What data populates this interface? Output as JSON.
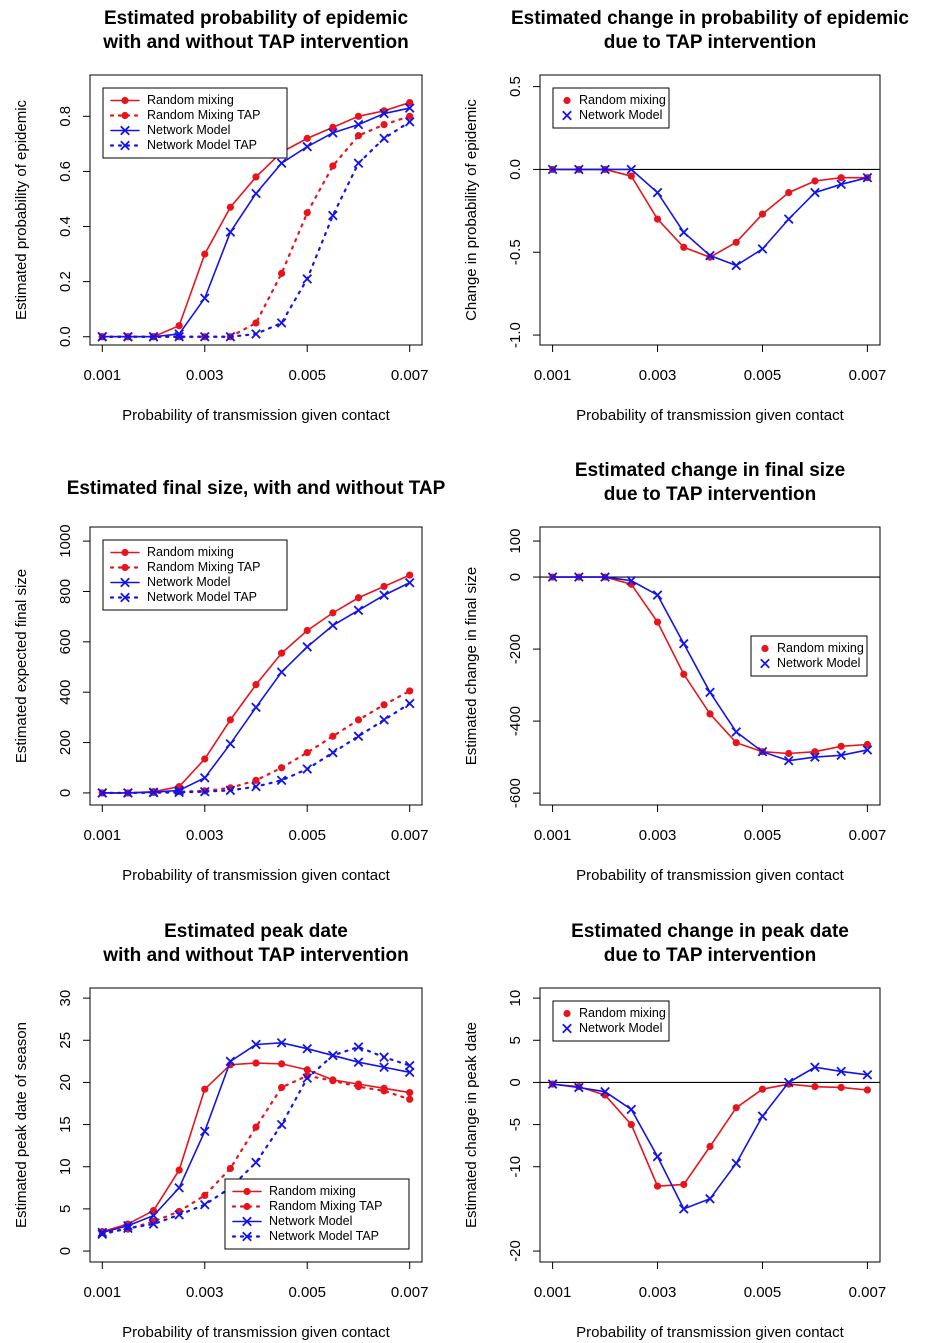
{
  "chart_data": [
    {
      "type": "line",
      "title": [
        "Estimated probability of epidemic",
        "with and without TAP intervention"
      ],
      "x_label": "Probability of transmission given contact",
      "y_label": "Estimated probability of epidemic",
      "x": [
        0.001,
        0.0015,
        0.002,
        0.0025,
        0.003,
        0.0035,
        0.004,
        0.0045,
        0.005,
        0.0055,
        0.006,
        0.0065,
        0.007
      ],
      "xlim": [
        0.00076,
        0.00724
      ],
      "xticks": [
        0.001,
        0.003,
        0.005,
        0.007
      ],
      "ylim": [
        -0.03,
        0.95
      ],
      "yticks": [
        {
          "value": 0,
          "label": "0.0"
        },
        0.2,
        0.4,
        0.6,
        0.8
      ],
      "legend": "topleft",
      "series": [
        {
          "name": "Random mixing",
          "color": "#e8141c",
          "line": "solid",
          "marker": "dot",
          "values": [
            0,
            0,
            0,
            0.04,
            0.3,
            0.47,
            0.58,
            0.67,
            0.72,
            0.76,
            0.8,
            0.82,
            0.85
          ]
        },
        {
          "name": "Random Mixing TAP",
          "color": "#e8141c",
          "line": "dotted",
          "marker": "dot",
          "values": [
            0,
            0,
            0,
            0,
            0,
            0,
            0.05,
            0.23,
            0.45,
            0.62,
            0.73,
            0.77,
            0.8
          ]
        },
        {
          "name": "Network Model",
          "color": "#1414e8",
          "line": "solid",
          "marker": "x",
          "values": [
            0,
            0,
            0,
            0.01,
            0.14,
            0.38,
            0.52,
            0.63,
            0.69,
            0.74,
            0.77,
            0.81,
            0.83
          ]
        },
        {
          "name": "Network Model TAP",
          "color": "#1414e8",
          "line": "dotted",
          "marker": "x",
          "values": [
            0,
            0,
            0,
            0,
            0,
            0,
            0.01,
            0.05,
            0.21,
            0.44,
            0.63,
            0.72,
            0.78
          ]
        }
      ]
    },
    {
      "type": "line",
      "title": [
        "Estimated change in probability of epidemic",
        "due to TAP intervention"
      ],
      "x_label": "Probability of transmission given contact",
      "y_label": "Change in probability of epidemic",
      "x": [
        0.001,
        0.0015,
        0.002,
        0.0025,
        0.003,
        0.0035,
        0.004,
        0.0045,
        0.005,
        0.0055,
        0.006,
        0.0065,
        0.007
      ],
      "xlim": [
        0.00076,
        0.00724
      ],
      "xticks": [
        0.001,
        0.003,
        0.005,
        0.007
      ],
      "ylim": [
        -1.06,
        0.57
      ],
      "yticks": [
        {
          "value": -1,
          "label": "-1.0"
        },
        -0.5,
        {
          "value": 0,
          "label": "0.0"
        },
        0.5
      ],
      "hline": 0,
      "legend": "topleft",
      "series": [
        {
          "name": "Random mixing",
          "color": "#e8141c",
          "line": "solid",
          "marker": "dot",
          "values": [
            0,
            0,
            0,
            -0.04,
            -0.3,
            -0.47,
            -0.53,
            -0.44,
            -0.27,
            -0.14,
            -0.07,
            -0.05,
            -0.05
          ]
        },
        {
          "name": "Network Model",
          "color": "#1414e8",
          "line": "solid",
          "marker": "x",
          "values": [
            0,
            0,
            0,
            0,
            -0.14,
            -0.38,
            -0.52,
            -0.58,
            -0.48,
            -0.3,
            -0.14,
            -0.09,
            -0.05
          ]
        }
      ]
    },
    {
      "type": "line",
      "title": [
        "Estimated final size, with and without TAP"
      ],
      "x_label": "Probability of transmission given contact",
      "y_label": "Estimated expected final size",
      "x": [
        0.001,
        0.0015,
        0.002,
        0.0025,
        0.003,
        0.0035,
        0.004,
        0.0045,
        0.005,
        0.0055,
        0.006,
        0.0065,
        0.007
      ],
      "xlim": [
        0.00076,
        0.00724
      ],
      "xticks": [
        0.001,
        0.003,
        0.005,
        0.007
      ],
      "ylim": [
        -48,
        1056
      ],
      "yticks": [
        0,
        200,
        400,
        600,
        800,
        1000
      ],
      "legend": "topleft",
      "series": [
        {
          "name": "Random mixing",
          "color": "#e8141c",
          "line": "solid",
          "marker": "dot",
          "values": [
            0,
            0,
            5,
            25,
            135,
            290,
            430,
            555,
            645,
            715,
            775,
            820,
            865
          ]
        },
        {
          "name": "Random Mixing TAP",
          "color": "#e8141c",
          "line": "dotted",
          "marker": "dot",
          "values": [
            0,
            0,
            2,
            5,
            8,
            20,
            50,
            100,
            160,
            225,
            290,
            350,
            405
          ]
        },
        {
          "name": "Network Model",
          "color": "#1414e8",
          "line": "solid",
          "marker": "x",
          "values": [
            0,
            0,
            3,
            10,
            60,
            195,
            340,
            480,
            580,
            665,
            725,
            785,
            835
          ]
        },
        {
          "name": "Network Model TAP",
          "color": "#1414e8",
          "line": "dotted",
          "marker": "x",
          "values": [
            0,
            0,
            1,
            2,
            5,
            10,
            25,
            50,
            95,
            160,
            225,
            290,
            355
          ]
        }
      ]
    },
    {
      "type": "line",
      "title": [
        "Estimated change in final size",
        "due to TAP intervention"
      ],
      "x_label": "Probability of transmission given contact",
      "y_label": "Estimated change in final size",
      "x": [
        0.001,
        0.0015,
        0.002,
        0.0025,
        0.003,
        0.0035,
        0.004,
        0.0045,
        0.005,
        0.0055,
        0.006,
        0.0065,
        0.007
      ],
      "xlim": [
        0.00076,
        0.00724
      ],
      "xticks": [
        0.001,
        0.003,
        0.005,
        0.007
      ],
      "ylim": [
        -633,
        139
      ],
      "yticks": [
        -600,
        -400,
        -200,
        0,
        100
      ],
      "hline": 0,
      "legend": "right",
      "series": [
        {
          "name": "Random mixing",
          "color": "#e8141c",
          "line": "solid",
          "marker": "dot",
          "values": [
            0,
            0,
            0,
            -20,
            -125,
            -270,
            -380,
            -460,
            -485,
            -490,
            -485,
            -470,
            -465
          ]
        },
        {
          "name": "Network Model",
          "color": "#1414e8",
          "line": "solid",
          "marker": "x",
          "values": [
            0,
            0,
            0,
            -10,
            -50,
            -185,
            -320,
            -430,
            -485,
            -510,
            -500,
            -495,
            -480
          ]
        }
      ]
    },
    {
      "type": "line",
      "title": [
        "Estimated peak date",
        "with and without TAP intervention"
      ],
      "x_label": "Probability of transmission given contact",
      "y_label": "Estimated peak date of season",
      "x": [
        0.001,
        0.0015,
        0.002,
        0.0025,
        0.003,
        0.0035,
        0.004,
        0.0045,
        0.005,
        0.0055,
        0.006,
        0.0065,
        0.007
      ],
      "xlim": [
        0.00076,
        0.00724
      ],
      "xticks": [
        0.001,
        0.003,
        0.005,
        0.007
      ],
      "ylim": [
        -1.3,
        31.2
      ],
      "yticks": [
        0,
        5,
        10,
        15,
        20,
        25,
        30
      ],
      "legend": "bottomright",
      "series": [
        {
          "name": "Random mixing",
          "color": "#e8141c",
          "line": "solid",
          "marker": "dot",
          "values": [
            2.3,
            3.2,
            4.8,
            9.6,
            19.2,
            22.1,
            22.3,
            22.2,
            21.5,
            20.3,
            19.8,
            19.3,
            18.8
          ]
        },
        {
          "name": "Random Mixing TAP",
          "color": "#e8141c",
          "line": "dotted",
          "marker": "dot",
          "values": [
            2.2,
            2.6,
            3.5,
            4.7,
            6.6,
            9.8,
            14.7,
            19.4,
            20.8,
            20.2,
            19.5,
            19.0,
            18.0
          ]
        },
        {
          "name": "Network Model",
          "color": "#1414e8",
          "line": "solid",
          "marker": "x",
          "values": [
            2.2,
            3.0,
            4.2,
            7.5,
            14.2,
            22.5,
            24.5,
            24.7,
            24.0,
            23.2,
            22.4,
            21.8,
            21.2
          ]
        },
        {
          "name": "Network Model TAP",
          "color": "#1414e8",
          "line": "dotted",
          "marker": "x",
          "values": [
            2.0,
            2.7,
            3.2,
            4.3,
            5.5,
            7.5,
            10.5,
            15.0,
            20.5,
            23.2,
            24.2,
            23.0,
            22.0
          ]
        }
      ]
    },
    {
      "type": "line",
      "title": [
        "Estimated change in peak date",
        "due to TAP intervention"
      ],
      "x_label": "Probability of transmission given contact",
      "y_label": "Estimated change in peak date",
      "x": [
        0.001,
        0.0015,
        0.002,
        0.0025,
        0.003,
        0.0035,
        0.004,
        0.0045,
        0.005,
        0.0055,
        0.006,
        0.0065,
        0.007
      ],
      "xlim": [
        0.00076,
        0.00724
      ],
      "xticks": [
        0.001,
        0.003,
        0.005,
        0.007
      ],
      "ylim": [
        -21.3,
        11.2
      ],
      "yticks": [
        -20,
        -10,
        -5,
        0,
        5,
        10
      ],
      "hline": 0,
      "legend": "topleft",
      "series": [
        {
          "name": "Random mixing",
          "color": "#e8141c",
          "line": "solid",
          "marker": "dot",
          "values": [
            -0.2,
            -0.5,
            -1.5,
            -5,
            -12.3,
            -12.1,
            -7.6,
            -3,
            -0.8,
            -0.2,
            -0.5,
            -0.6,
            -0.9
          ]
        },
        {
          "name": "Network Model",
          "color": "#1414e8",
          "line": "solid",
          "marker": "x",
          "values": [
            -0.2,
            -0.6,
            -1.1,
            -3.2,
            -8.8,
            -15,
            -13.8,
            -9.6,
            -4.0,
            0.0,
            1.8,
            1.3,
            0.9
          ]
        }
      ]
    }
  ]
}
